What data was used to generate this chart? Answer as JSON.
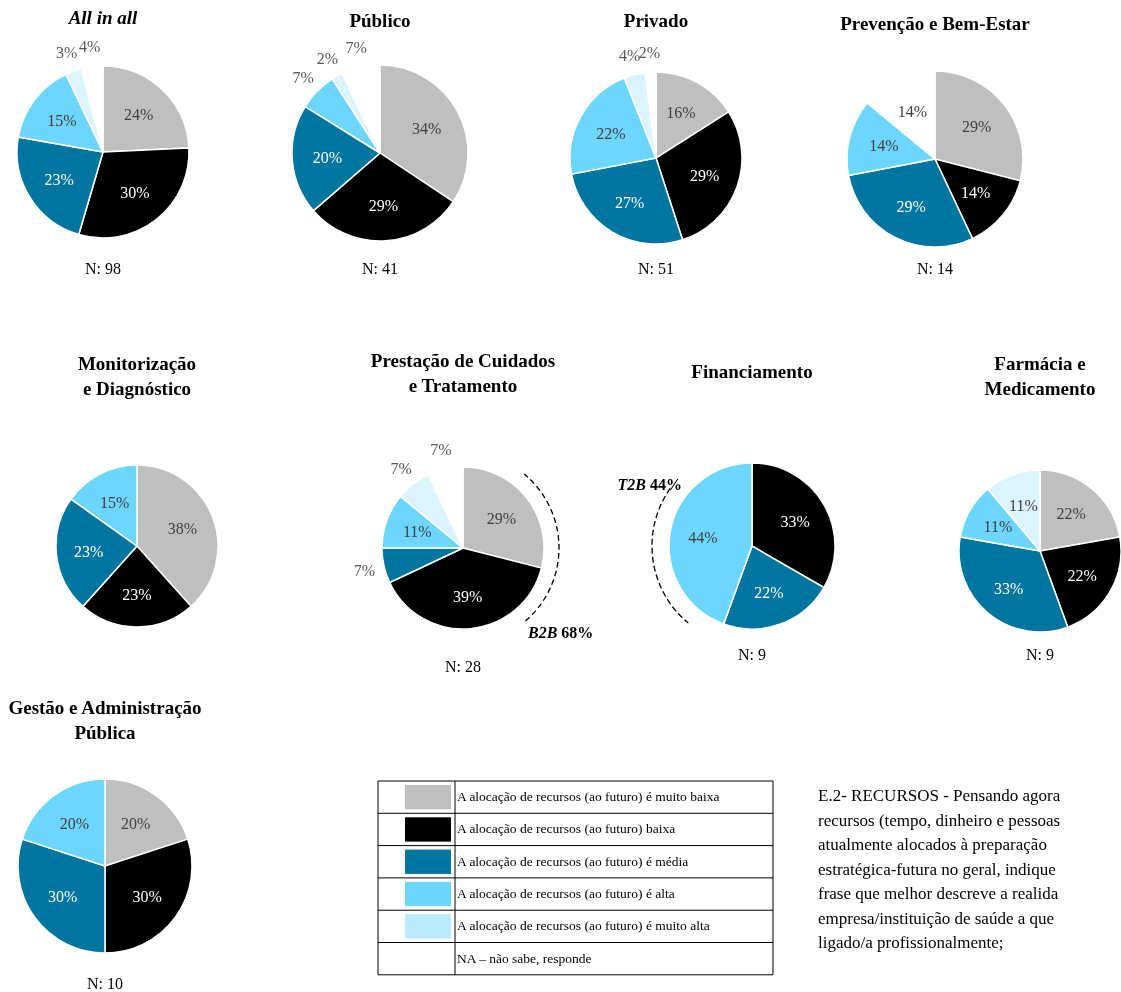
{
  "chart_data": [
    {
      "type": "pie",
      "title": "All in all",
      "categories": [
        null,
        null,
        null,
        null,
        null,
        null
      ],
      "values": [
        24,
        30,
        23,
        15,
        3,
        4
      ],
      "value_labels": [
        "24%",
        "30%",
        "23%",
        "15%",
        "3%",
        "4%"
      ],
      "colors": [
        "#bfbfbf",
        "#000000",
        "#00759f",
        "#6dd6ff",
        "#dcf4fd",
        "#ffffff"
      ],
      "legend": false,
      "annotations": [
        "N: 98"
      ]
    },
    {
      "type": "pie",
      "title": "Público",
      "categories": [
        null,
        null,
        null,
        null,
        null,
        null
      ],
      "values": [
        34,
        29,
        20,
        7,
        2,
        7
      ],
      "value_labels": [
        "34%",
        "29%",
        "20%",
        "7%",
        "2%",
        "7%"
      ],
      "colors": [
        "#bfbfbf",
        "#000000",
        "#00759f",
        "#6dd6ff",
        "#dcf4fd",
        "#ffffff"
      ],
      "legend": false,
      "annotations": [
        "N: 41"
      ]
    },
    {
      "type": "pie",
      "title": "Privado",
      "categories": [
        null,
        null,
        null,
        null,
        null,
        null
      ],
      "values": [
        16,
        29,
        27,
        22,
        4,
        2
      ],
      "value_labels": [
        "16%",
        "29%",
        "27%",
        "22%",
        "4%",
        "2%"
      ],
      "colors": [
        "#bfbfbf",
        "#000000",
        "#00759f",
        "#6dd6ff",
        "#dcf4fd",
        "#ffffff"
      ],
      "legend": false,
      "annotations": [
        "N: 51"
      ]
    },
    {
      "type": "pie",
      "title": "Prevenção e Bem-Estar",
      "categories": [
        null,
        null,
        null,
        null,
        null,
        null
      ],
      "values": [
        29,
        14,
        29,
        14,
        null,
        14
      ],
      "value_labels": [
        "29%",
        "14%",
        "29%",
        "14%",
        null,
        "14%"
      ],
      "colors": [
        "#bfbfbf",
        "#000000",
        "#00759f",
        "#6dd6ff",
        null,
        "#ffffff"
      ],
      "legend": false,
      "annotations": [
        "N: 14"
      ]
    },
    {
      "type": "pie",
      "title": "Monitorização\ne Diagnóstico",
      "categories": [
        null,
        null,
        null,
        null,
        null,
        null
      ],
      "values": [
        38,
        23,
        23,
        15,
        null,
        null
      ],
      "value_labels": [
        "38%",
        "23%",
        "23%",
        "15%",
        null,
        null
      ],
      "colors": [
        "#bfbfbf",
        "#000000",
        "#00759f",
        "#6dd6ff",
        null,
        null
      ],
      "legend": false
    },
    {
      "type": "pie",
      "title": "Prestação de Cuidados\ne Tratamento",
      "categories": [
        null,
        null,
        null,
        null,
        null,
        null
      ],
      "values": [
        29,
        39,
        7,
        11,
        7,
        7
      ],
      "value_labels": [
        "29%",
        "39%",
        "7%",
        "11%",
        "7%",
        "7%"
      ],
      "colors": [
        "#bfbfbf",
        "#000000",
        "#00759f",
        "#6dd6ff",
        "#dcf4fd",
        "#ffffff"
      ],
      "legend": false,
      "annotations": [
        "N: 28",
        "B2B 68%"
      ]
    },
    {
      "type": "pie",
      "title": "Financiamento",
      "categories": [
        null,
        null,
        null,
        null,
        null,
        null
      ],
      "values": [
        null,
        33,
        22,
        44,
        null,
        null
      ],
      "value_labels": [
        null,
        "33%",
        "22%",
        "44%",
        null,
        null
      ],
      "colors": [
        null,
        "#000000",
        "#00759f",
        "#6dd6ff",
        null,
        null
      ],
      "legend": false,
      "annotations": [
        "N: 9",
        "T2B 44%"
      ]
    },
    {
      "type": "pie",
      "title": "Farmácia e\nMedicamento",
      "categories": [
        null,
        null,
        null,
        null,
        null,
        null
      ],
      "values": [
        22,
        22,
        33,
        11,
        11,
        null
      ],
      "value_labels": [
        "22%",
        "22%",
        "33%",
        "11%",
        "11%",
        null
      ],
      "colors": [
        "#bfbfbf",
        "#000000",
        "#00759f",
        "#6dd6ff",
        "#dcf4fd",
        null
      ],
      "legend": false,
      "annotations": [
        "N: 9"
      ]
    },
    {
      "type": "pie",
      "title": "Gestão e Administração\nPública",
      "categories": [
        "A alocação de recursos (ao futuro) é muito baixa",
        "A alocação de recursos (ao futuro) baixa",
        "A alocação de recursos (ao futuro) é média",
        "A alocação de recursos (ao futuro) é alta",
        "A alocação de recursos (ao futuro) é muito alta",
        "NA – não sabe, responde"
      ],
      "values": [
        20,
        30,
        30,
        20,
        null,
        null
      ],
      "value_labels": [
        "20%",
        "30%",
        "30%",
        "20%",
        null,
        null
      ],
      "colors": [
        "#bfbfbf",
        "#000000",
        "#00759f",
        "#6dd6ff",
        "#b9ebfc",
        "#ffffff"
      ],
      "legend": "right",
      "annotations": [
        "N: 10",
        "E.2- RECURSOS - Pensando agora\nrecursos (tempo, dinheiro e pessoas\natualmente alocados à preparação\nestratégica-futura no geral, indique\nfrase que melhor descreve a realida\nempresa/instituição de saúde a que\nligado/a profissionalmente;"
      ]
    }
  ]
}
